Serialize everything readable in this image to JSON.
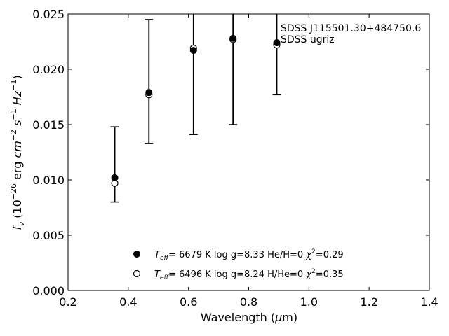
{
  "chart_data": {
    "type": "scatter",
    "xlabel": "Wavelength (μm)",
    "ylabel": "f_ν (10^-26 erg cm^-2 s^-1 Hz^-1)",
    "xlim": [
      0.2,
      1.4
    ],
    "ylim": [
      0.0,
      0.025
    ],
    "x_ticks": [
      0.2,
      0.4,
      0.6,
      0.8,
      1.0,
      1.2,
      1.4
    ],
    "y_ticks": [
      0.0,
      0.005,
      0.01,
      0.015,
      0.02,
      0.025
    ],
    "x_tick_labels": [
      "0.2",
      "0.4",
      "0.6",
      "0.8",
      "1.0",
      "1.2",
      "1.4"
    ],
    "y_tick_labels": [
      "0.000",
      "0.005",
      "0.010",
      "0.015",
      "0.020",
      "0.025"
    ],
    "grid": false,
    "legend_position": "bottom-center",
    "annotation": [
      "SDSS J115501.30+484750.6",
      "SDSS ugriz"
    ],
    "observed": {
      "x": [
        0.3551,
        0.4686,
        0.6166,
        0.748,
        0.8932
      ],
      "y": [
        0.0114,
        0.0189,
        0.0221,
        0.024,
        0.0223
      ],
      "yerr": [
        0.0034,
        0.0056,
        0.008,
        0.009,
        0.0046
      ]
    },
    "series": [
      {
        "marker": "filled-circle",
        "x": [
          0.3551,
          0.4686,
          0.6166,
          0.748,
          0.8932
        ],
        "y": [
          0.0102,
          0.0179,
          0.0217,
          0.0228,
          0.0224
        ],
        "label_parts": {
          "teff": "6679",
          "logg": "8.33",
          "comp": "He/H=0",
          "chi2": "0.29"
        }
      },
      {
        "marker": "open-circle",
        "x": [
          0.3551,
          0.4686,
          0.6166,
          0.748,
          0.8932
        ],
        "y": [
          0.0097,
          0.0177,
          0.0219,
          0.0227,
          0.0222
        ],
        "label_parts": {
          "teff": "6496",
          "logg": "8.24",
          "comp": "H/He=0",
          "chi2": "0.35"
        }
      }
    ]
  }
}
